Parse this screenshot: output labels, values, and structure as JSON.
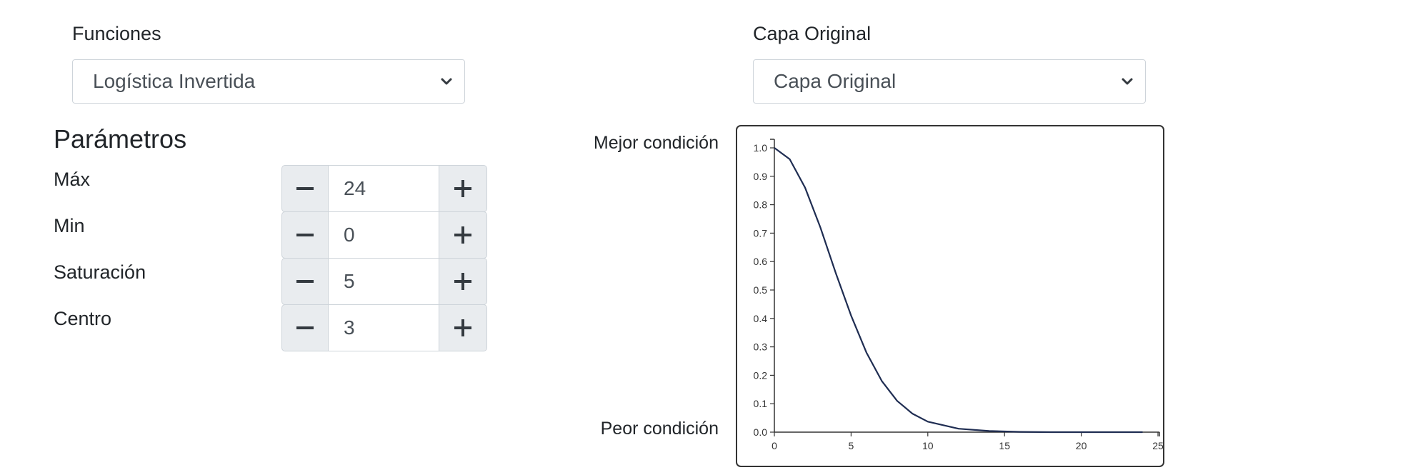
{
  "left_panel": {
    "function_label": "Funciones",
    "function_select": {
      "value": "Logística Invertida"
    },
    "params_heading": "Parámetros",
    "params": [
      {
        "label": "Máx",
        "value": "24"
      },
      {
        "label": "Min",
        "value": "0"
      },
      {
        "label": "Saturación",
        "value": "5"
      },
      {
        "label": "Centro",
        "value": "3"
      }
    ]
  },
  "right_panel": {
    "layer_label": "Capa Original",
    "layer_select": {
      "value": "Capa Original"
    },
    "best_condition": "Mejor condición",
    "worst_condition": "Peor condición"
  },
  "icons": {
    "minus": "minus-icon",
    "plus": "plus-icon",
    "select_arrow": "chevron-down-icon"
  },
  "colors": {
    "curve": "#1f2d52",
    "button_bg": "#e9ecef",
    "border": "#ced4da"
  },
  "chart_data": {
    "type": "line",
    "x_ticks": [
      "0",
      "5",
      "10",
      "15",
      "20",
      "25"
    ],
    "y_ticks": [
      "0.0",
      "0.1",
      "0.2",
      "0.3",
      "0.4",
      "0.5",
      "0.6",
      "0.7",
      "0.8",
      "0.9",
      "1.0"
    ],
    "xlim": [
      0,
      25
    ],
    "ylim": [
      0,
      1
    ],
    "series": [
      {
        "x": [
          0,
          1,
          2,
          3,
          4,
          5,
          6,
          7,
          8,
          9,
          10,
          12,
          14,
          16,
          18,
          20,
          22,
          24
        ],
        "y": [
          1.0,
          0.96,
          0.86,
          0.72,
          0.56,
          0.41,
          0.28,
          0.18,
          0.11,
          0.065,
          0.037,
          0.012,
          0.004,
          0.001,
          0.0,
          0.0,
          0.0,
          0.0
        ]
      }
    ],
    "grid": false
  }
}
